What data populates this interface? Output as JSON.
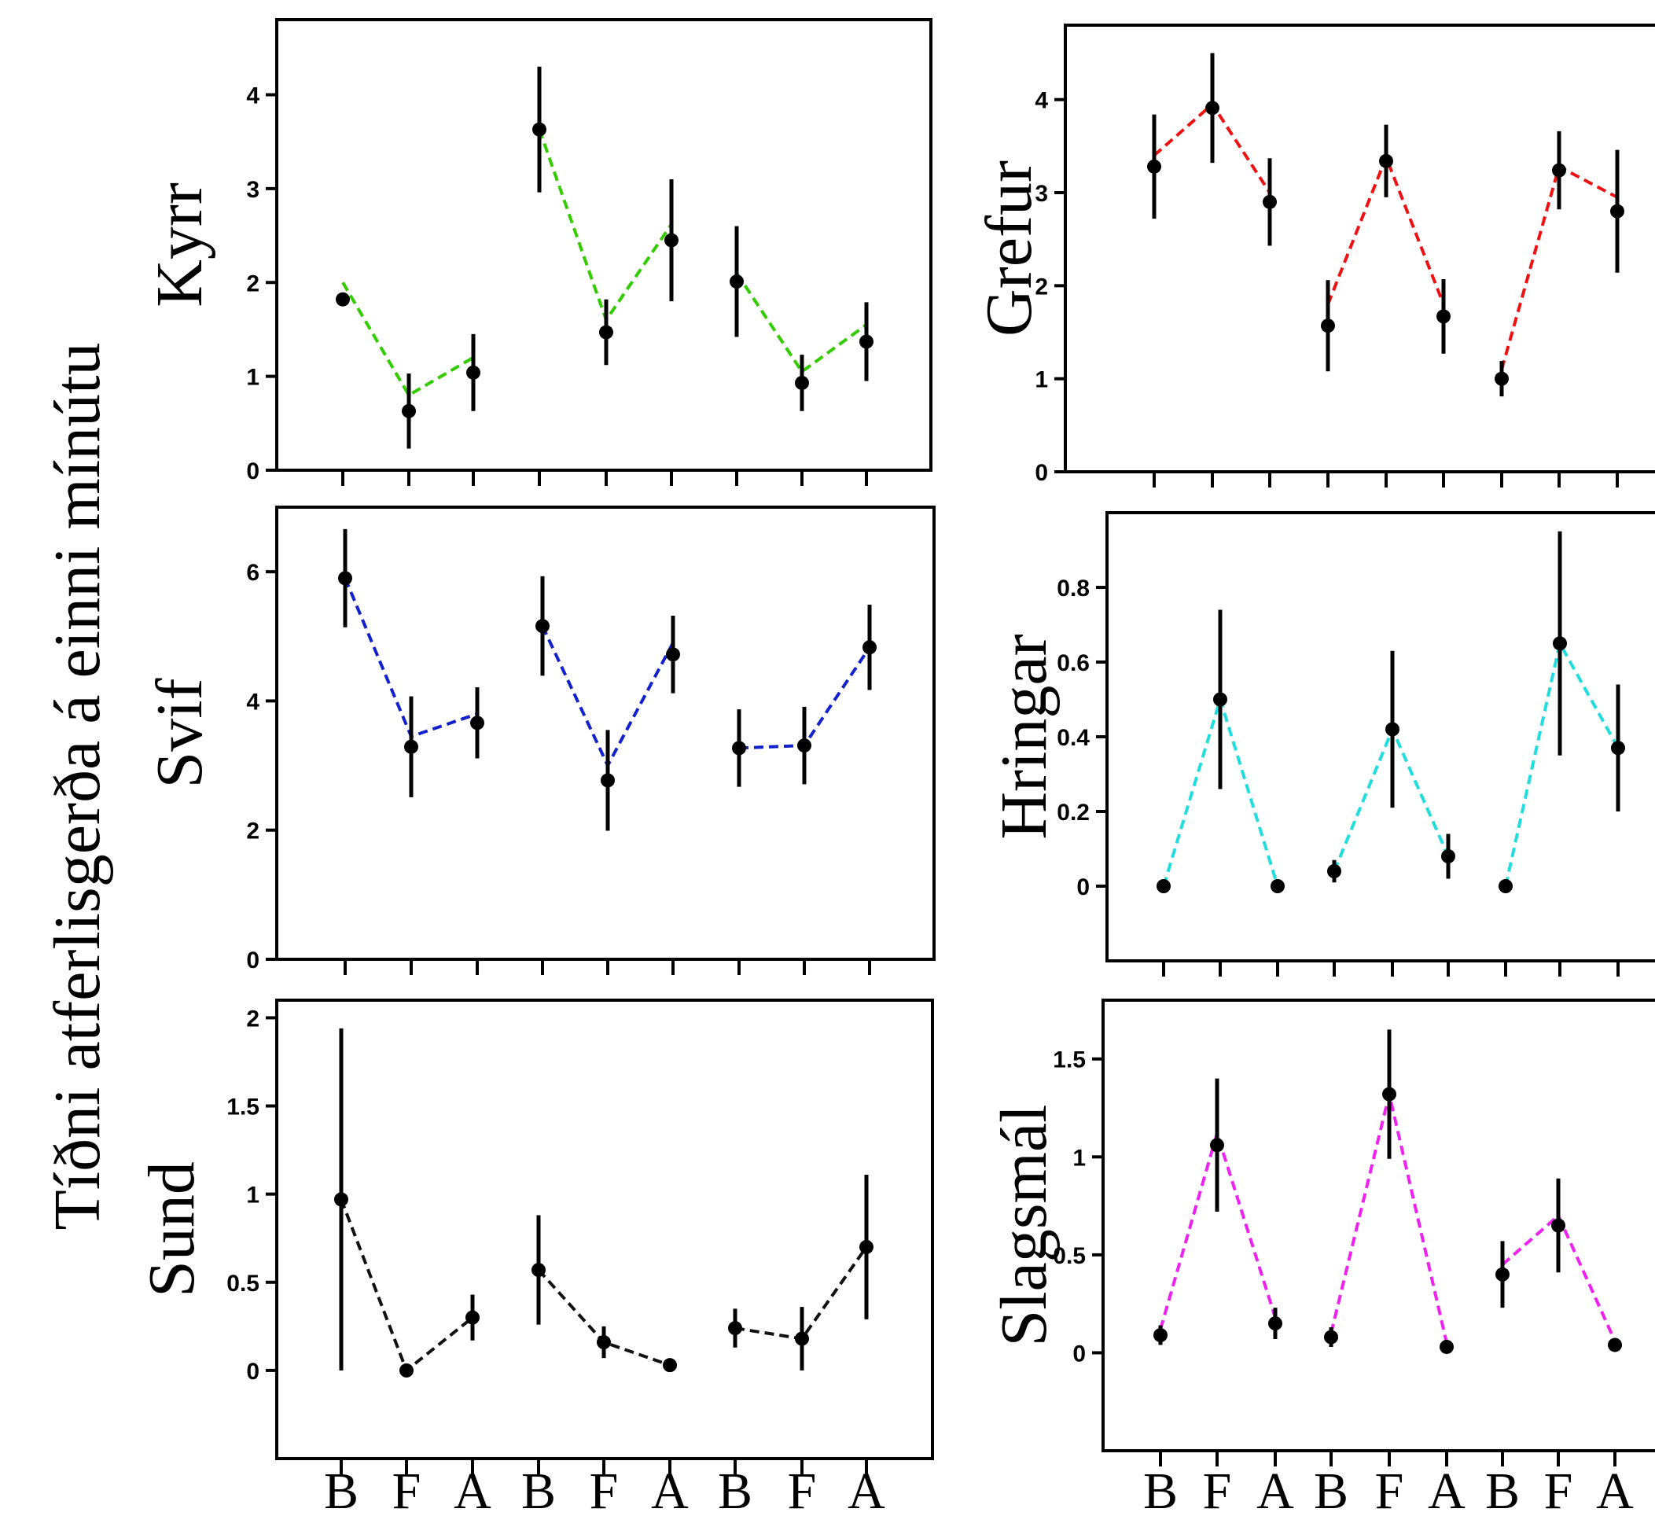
{
  "figure": {
    "ylabel": "Tíðni atferlisgerða á einni mínútu"
  },
  "chart_data": [
    {
      "type": "scatter",
      "panel": "Kyrr",
      "color": "#33cc00",
      "categories": [
        "B",
        "F",
        "A",
        "B",
        "F",
        "A",
        "B",
        "F",
        "A"
      ],
      "groups": [
        [
          0,
          1,
          2
        ],
        [
          3,
          4,
          5
        ],
        [
          6,
          7,
          8
        ]
      ],
      "yticks": [
        "0",
        "1",
        "2",
        "3",
        "4"
      ],
      "ylim": [
        0,
        4.8
      ],
      "values": [
        1.82,
        0.63,
        1.04,
        3.63,
        1.47,
        2.45,
        2.01,
        0.93,
        1.37
      ],
      "errors": [
        0.05,
        0.4,
        0.41,
        0.67,
        0.35,
        0.65,
        0.59,
        0.3,
        0.42
      ],
      "line_values": [
        2.0,
        0.8,
        1.2,
        3.63,
        1.6,
        2.62,
        2.1,
        1.05,
        1.55
      ]
    },
    {
      "type": "scatter",
      "panel": "Grefur",
      "color": "#ee1111",
      "categories": [
        "B",
        "F",
        "A",
        "B",
        "F",
        "A",
        "B",
        "F",
        "A"
      ],
      "groups": [
        [
          0,
          1,
          2
        ],
        [
          3,
          4,
          5
        ],
        [
          6,
          7,
          8
        ]
      ],
      "yticks": [
        "0",
        "1",
        "2",
        "3",
        "4"
      ],
      "ylim": [
        0,
        4.8
      ],
      "values": [
        3.28,
        3.91,
        2.9,
        1.57,
        3.34,
        1.67,
        1.0,
        3.24,
        2.8
      ],
      "errors": [
        0.56,
        0.59,
        0.47,
        0.49,
        0.39,
        0.4,
        0.19,
        0.42,
        0.66
      ],
      "line_values": [
        3.4,
        3.95,
        3.0,
        1.8,
        3.38,
        1.8,
        1.1,
        3.28,
        2.95
      ]
    },
    {
      "type": "scatter",
      "panel": "Svif",
      "color": "#1122cc",
      "categories": [
        "B",
        "F",
        "A",
        "B",
        "F",
        "A",
        "B",
        "F",
        "A"
      ],
      "groups": [
        [
          0,
          1,
          2
        ],
        [
          3,
          4,
          5
        ],
        [
          6,
          7,
          8
        ]
      ],
      "yticks": [
        "0",
        "2",
        "4",
        "6"
      ],
      "ylim": [
        0,
        7
      ],
      "values": [
        5.9,
        3.29,
        3.66,
        5.16,
        2.77,
        4.72,
        3.27,
        3.31,
        4.83
      ],
      "errors": [
        0.76,
        0.78,
        0.55,
        0.77,
        0.78,
        0.6,
        0.6,
        0.6,
        0.66
      ],
      "line_values": [
        5.9,
        3.45,
        3.8,
        5.16,
        3.0,
        4.9,
        3.27,
        3.31,
        4.83
      ]
    },
    {
      "type": "scatter",
      "panel": "Hringar",
      "color": "#22dddd",
      "categories": [
        "B",
        "F",
        "A",
        "B",
        "F",
        "A",
        "B",
        "F",
        "A"
      ],
      "groups": [
        [
          0,
          1,
          2
        ],
        [
          3,
          4,
          5
        ],
        [
          6,
          7,
          8
        ]
      ],
      "yticks": [
        "0",
        "0.2",
        "0.4",
        "0.6",
        "0.8"
      ],
      "ylim": [
        -0.2,
        1.0
      ],
      "values": [
        0.0,
        0.5,
        0.0,
        0.04,
        0.42,
        0.08,
        0.0,
        0.65,
        0.37
      ],
      "errors": [
        0.0,
        0.24,
        0.0,
        0.03,
        0.21,
        0.06,
        0.0,
        0.3,
        0.17
      ],
      "line_values": [
        0.0,
        0.5,
        0.0,
        0.04,
        0.42,
        0.08,
        0.0,
        0.65,
        0.37
      ]
    },
    {
      "type": "scatter",
      "panel": "Sund",
      "color": "#111111",
      "categories": [
        "B",
        "F",
        "A",
        "B",
        "F",
        "A",
        "B",
        "F",
        "A"
      ],
      "groups": [
        [
          0,
          1,
          2
        ],
        [
          3,
          4,
          5
        ],
        [
          6,
          7,
          8
        ]
      ],
      "yticks": [
        "0",
        "0.5",
        "1",
        "1.5",
        "2"
      ],
      "ylim": [
        -0.5,
        2.1
      ],
      "values": [
        0.97,
        0.0,
        0.3,
        0.57,
        0.16,
        0.03,
        0.24,
        0.18,
        0.7
      ],
      "errors": [
        0.97,
        0.0,
        0.13,
        0.31,
        0.09,
        0.0,
        0.11,
        0.18,
        0.41
      ],
      "line_values": [
        0.97,
        0.0,
        0.3,
        0.57,
        0.16,
        0.03,
        0.24,
        0.18,
        0.7
      ]
    },
    {
      "type": "scatter",
      "panel": "Slagsmál",
      "color": "#ee22ee",
      "categories": [
        "B",
        "F",
        "A",
        "B",
        "F",
        "A",
        "B",
        "F",
        "A"
      ],
      "groups": [
        [
          0,
          1,
          2
        ],
        [
          3,
          4,
          5
        ],
        [
          6,
          7,
          8
        ]
      ],
      "yticks": [
        "0",
        "0.5",
        "1",
        "1.5"
      ],
      "ylim": [
        -0.5,
        1.8
      ],
      "values": [
        0.09,
        1.06,
        0.15,
        0.08,
        1.32,
        0.03,
        0.4,
        0.65,
        0.04
      ],
      "errors": [
        0.05,
        0.34,
        0.08,
        0.05,
        0.33,
        0.0,
        0.17,
        0.24,
        0.0
      ],
      "line_values": [
        0.12,
        1.12,
        0.18,
        0.1,
        1.32,
        0.05,
        0.45,
        0.7,
        0.06
      ]
    }
  ]
}
